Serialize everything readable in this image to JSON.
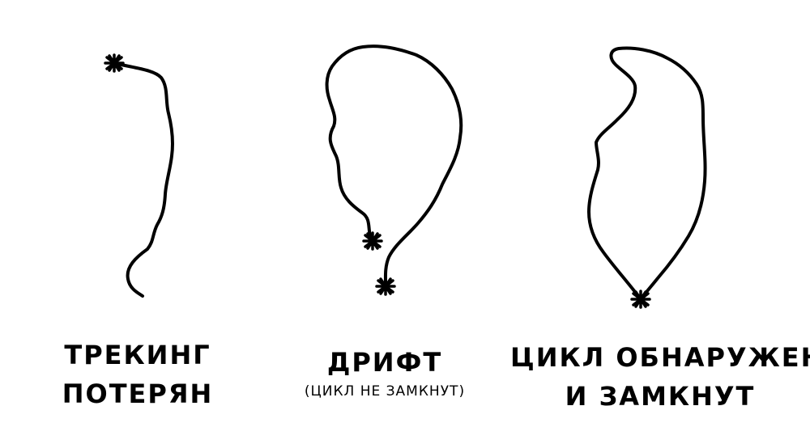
{
  "panels": [
    {
      "caption_lines": [
        "ТРЕКИНГ",
        "ПОТЕРЯН"
      ]
    },
    {
      "caption_lines": [
        "ДРИФТ"
      ],
      "sub_caption": "(ЦИКЛ НЕ ЗАМКНУТ)"
    },
    {
      "caption_lines": [
        "ЦИКЛ ОБНАРУЖЕН",
        "И ЗАМКНУТ"
      ]
    }
  ],
  "colors": {
    "ink": "#000000",
    "background": "#ffffff"
  },
  "icons": [
    "star-marker-icon"
  ]
}
